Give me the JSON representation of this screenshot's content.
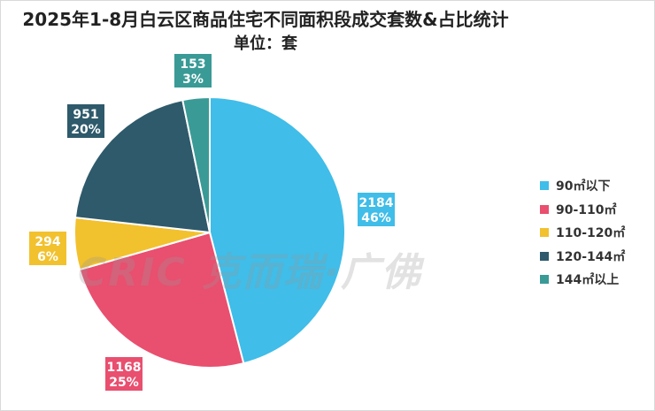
{
  "chart_data": {
    "type": "pie",
    "title": "2025年1-8月白云区商品住宅不同面积段成交套数&占比统计",
    "subtitle": "单位：套",
    "slices": [
      {
        "label": "90㎡以下",
        "value": 2184,
        "percent": "46%",
        "color": "#40bde8"
      },
      {
        "label": "90-110㎡",
        "value": 1168,
        "percent": "25%",
        "color": "#e94f6f"
      },
      {
        "label": "110-120㎡",
        "value": 294,
        "percent": "6%",
        "color": "#f2c12e"
      },
      {
        "label": "120-144㎡",
        "value": 951,
        "percent": "20%",
        "color": "#2e5a6b"
      },
      {
        "label": "144㎡以上",
        "value": 153,
        "percent": "3%",
        "color": "#3a9a96"
      }
    ],
    "legend_position": "right"
  },
  "watermark": "CRIC 克而瑞·广佛"
}
